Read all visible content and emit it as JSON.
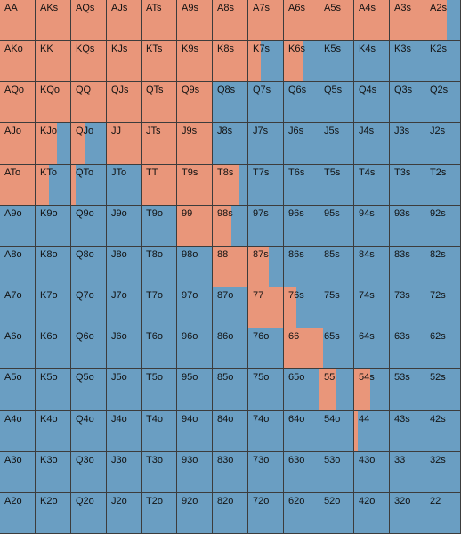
{
  "colors": {
    "raise": "#e9967a",
    "fold": "#6a9ec2",
    "border": "#3c3c3c"
  },
  "grid": {
    "rows": [
      {
        "cells": [
          {
            "label": "AA",
            "raise": 1
          },
          {
            "label": "AKs",
            "raise": 1
          },
          {
            "label": "AQs",
            "raise": 1
          },
          {
            "label": "AJs",
            "raise": 1
          },
          {
            "label": "ATs",
            "raise": 1
          },
          {
            "label": "A9s",
            "raise": 1
          },
          {
            "label": "A8s",
            "raise": 1
          },
          {
            "label": "A7s",
            "raise": 1
          },
          {
            "label": "A6s",
            "raise": 1
          },
          {
            "label": "A5s",
            "raise": 1
          },
          {
            "label": "A4s",
            "raise": 1
          },
          {
            "label": "A3s",
            "raise": 1
          },
          {
            "label": "A2s",
            "raise": 0.62
          }
        ]
      },
      {
        "cells": [
          {
            "label": "AKo",
            "raise": 1
          },
          {
            "label": "KK",
            "raise": 1
          },
          {
            "label": "KQs",
            "raise": 1
          },
          {
            "label": "KJs",
            "raise": 1
          },
          {
            "label": "KTs",
            "raise": 1
          },
          {
            "label": "K9s",
            "raise": 1
          },
          {
            "label": "K8s",
            "raise": 1
          },
          {
            "label": "K7s",
            "raise": 0.35
          },
          {
            "label": "K6s",
            "raise": 0.55
          },
          {
            "label": "K5s",
            "raise": 0
          },
          {
            "label": "K4s",
            "raise": 0
          },
          {
            "label": "K3s",
            "raise": 0
          },
          {
            "label": "K2s",
            "raise": 0
          }
        ]
      },
      {
        "cells": [
          {
            "label": "AQo",
            "raise": 1
          },
          {
            "label": "KQo",
            "raise": 1
          },
          {
            "label": "QQ",
            "raise": 1
          },
          {
            "label": "QJs",
            "raise": 1
          },
          {
            "label": "QTs",
            "raise": 1
          },
          {
            "label": "Q9s",
            "raise": 1
          },
          {
            "label": "Q8s",
            "raise": 0
          },
          {
            "label": "Q7s",
            "raise": 0
          },
          {
            "label": "Q6s",
            "raise": 0
          },
          {
            "label": "Q5s",
            "raise": 0
          },
          {
            "label": "Q4s",
            "raise": 0
          },
          {
            "label": "Q3s",
            "raise": 0
          },
          {
            "label": "Q2s",
            "raise": 0
          }
        ]
      },
      {
        "cells": [
          {
            "label": "AJo",
            "raise": 1
          },
          {
            "label": "KJo",
            "raise": 0.62
          },
          {
            "label": "QJo",
            "raise": 0.4
          },
          {
            "label": "JJ",
            "raise": 1
          },
          {
            "label": "JTs",
            "raise": 1
          },
          {
            "label": "J9s",
            "raise": 1
          },
          {
            "label": "J8s",
            "raise": 0
          },
          {
            "label": "J7s",
            "raise": 0
          },
          {
            "label": "J6s",
            "raise": 0
          },
          {
            "label": "J5s",
            "raise": 0
          },
          {
            "label": "J4s",
            "raise": 0
          },
          {
            "label": "J3s",
            "raise": 0
          },
          {
            "label": "J2s",
            "raise": 0
          }
        ]
      },
      {
        "cells": [
          {
            "label": "ATo",
            "raise": 1
          },
          {
            "label": "KTo",
            "raise": 0.38
          },
          {
            "label": "QTo",
            "raise": 0.12
          },
          {
            "label": "JTo",
            "raise": 0
          },
          {
            "label": "TT",
            "raise": 1
          },
          {
            "label": "T9s",
            "raise": 1
          },
          {
            "label": "T8s",
            "raise": 0.78
          },
          {
            "label": "T7s",
            "raise": 0
          },
          {
            "label": "T6s",
            "raise": 0
          },
          {
            "label": "T5s",
            "raise": 0
          },
          {
            "label": "T4s",
            "raise": 0
          },
          {
            "label": "T3s",
            "raise": 0
          },
          {
            "label": "T2s",
            "raise": 0
          }
        ]
      },
      {
        "cells": [
          {
            "label": "A9o",
            "raise": 0
          },
          {
            "label": "K9o",
            "raise": 0
          },
          {
            "label": "Q9o",
            "raise": 0
          },
          {
            "label": "J9o",
            "raise": 0
          },
          {
            "label": "T9o",
            "raise": 0
          },
          {
            "label": "99",
            "raise": 1
          },
          {
            "label": "98s",
            "raise": 0.55
          },
          {
            "label": "97s",
            "raise": 0
          },
          {
            "label": "96s",
            "raise": 0
          },
          {
            "label": "95s",
            "raise": 0
          },
          {
            "label": "94s",
            "raise": 0
          },
          {
            "label": "93s",
            "raise": 0
          },
          {
            "label": "92s",
            "raise": 0
          }
        ]
      },
      {
        "cells": [
          {
            "label": "A8o",
            "raise": 0
          },
          {
            "label": "K8o",
            "raise": 0
          },
          {
            "label": "Q8o",
            "raise": 0
          },
          {
            "label": "J8o",
            "raise": 0
          },
          {
            "label": "T8o",
            "raise": 0
          },
          {
            "label": "98o",
            "raise": 0
          },
          {
            "label": "88",
            "raise": 1
          },
          {
            "label": "87s",
            "raise": 0.58
          },
          {
            "label": "86s",
            "raise": 0
          },
          {
            "label": "85s",
            "raise": 0
          },
          {
            "label": "84s",
            "raise": 0
          },
          {
            "label": "83s",
            "raise": 0
          },
          {
            "label": "82s",
            "raise": 0
          }
        ]
      },
      {
        "cells": [
          {
            "label": "A7o",
            "raise": 0
          },
          {
            "label": "K7o",
            "raise": 0
          },
          {
            "label": "Q7o",
            "raise": 0
          },
          {
            "label": "J7o",
            "raise": 0
          },
          {
            "label": "T7o",
            "raise": 0
          },
          {
            "label": "97o",
            "raise": 0
          },
          {
            "label": "87o",
            "raise": 0
          },
          {
            "label": "77",
            "raise": 1
          },
          {
            "label": "76s",
            "raise": 0.35
          },
          {
            "label": "75s",
            "raise": 0
          },
          {
            "label": "74s",
            "raise": 0
          },
          {
            "label": "73s",
            "raise": 0
          },
          {
            "label": "72s",
            "raise": 0
          }
        ]
      },
      {
        "cells": [
          {
            "label": "A6o",
            "raise": 0
          },
          {
            "label": "K6o",
            "raise": 0
          },
          {
            "label": "Q6o",
            "raise": 0
          },
          {
            "label": "J6o",
            "raise": 0
          },
          {
            "label": "T6o",
            "raise": 0
          },
          {
            "label": "96o",
            "raise": 0
          },
          {
            "label": "86o",
            "raise": 0
          },
          {
            "label": "76o",
            "raise": 0
          },
          {
            "label": "66",
            "raise": 1
          },
          {
            "label": "65s",
            "raise": 0.1
          },
          {
            "label": "64s",
            "raise": 0
          },
          {
            "label": "63s",
            "raise": 0
          },
          {
            "label": "62s",
            "raise": 0
          }
        ]
      },
      {
        "cells": [
          {
            "label": "A5o",
            "raise": 0
          },
          {
            "label": "K5o",
            "raise": 0
          },
          {
            "label": "Q5o",
            "raise": 0
          },
          {
            "label": "J5o",
            "raise": 0
          },
          {
            "label": "T5o",
            "raise": 0
          },
          {
            "label": "95o",
            "raise": 0
          },
          {
            "label": "85o",
            "raise": 0
          },
          {
            "label": "75o",
            "raise": 0
          },
          {
            "label": "65o",
            "raise": 0
          },
          {
            "label": "55",
            "raise": 0.5
          },
          {
            "label": "54s",
            "raise": 0.45
          },
          {
            "label": "53s",
            "raise": 0
          },
          {
            "label": "52s",
            "raise": 0
          }
        ]
      },
      {
        "cells": [
          {
            "label": "A4o",
            "raise": 0
          },
          {
            "label": "K4o",
            "raise": 0
          },
          {
            "label": "Q4o",
            "raise": 0
          },
          {
            "label": "J4o",
            "raise": 0
          },
          {
            "label": "T4o",
            "raise": 0
          },
          {
            "label": "94o",
            "raise": 0
          },
          {
            "label": "84o",
            "raise": 0
          },
          {
            "label": "74o",
            "raise": 0
          },
          {
            "label": "64o",
            "raise": 0
          },
          {
            "label": "54o",
            "raise": 0
          },
          {
            "label": "44",
            "raise": 0.1
          },
          {
            "label": "43s",
            "raise": 0
          },
          {
            "label": "42s",
            "raise": 0
          }
        ]
      },
      {
        "cells": [
          {
            "label": "A3o",
            "raise": 0
          },
          {
            "label": "K3o",
            "raise": 0
          },
          {
            "label": "Q3o",
            "raise": 0
          },
          {
            "label": "J3o",
            "raise": 0
          },
          {
            "label": "T3o",
            "raise": 0
          },
          {
            "label": "93o",
            "raise": 0
          },
          {
            "label": "83o",
            "raise": 0
          },
          {
            "label": "73o",
            "raise": 0
          },
          {
            "label": "63o",
            "raise": 0
          },
          {
            "label": "53o",
            "raise": 0
          },
          {
            "label": "43o",
            "raise": 0
          },
          {
            "label": "33",
            "raise": 0
          },
          {
            "label": "32s",
            "raise": 0
          }
        ]
      },
      {
        "cells": [
          {
            "label": "A2o",
            "raise": 0
          },
          {
            "label": "K2o",
            "raise": 0
          },
          {
            "label": "Q2o",
            "raise": 0
          },
          {
            "label": "J2o",
            "raise": 0
          },
          {
            "label": "T2o",
            "raise": 0
          },
          {
            "label": "92o",
            "raise": 0
          },
          {
            "label": "82o",
            "raise": 0
          },
          {
            "label": "72o",
            "raise": 0
          },
          {
            "label": "62o",
            "raise": 0
          },
          {
            "label": "52o",
            "raise": 0
          },
          {
            "label": "42o",
            "raise": 0
          },
          {
            "label": "32o",
            "raise": 0
          },
          {
            "label": "22",
            "raise": 0
          }
        ]
      }
    ]
  }
}
